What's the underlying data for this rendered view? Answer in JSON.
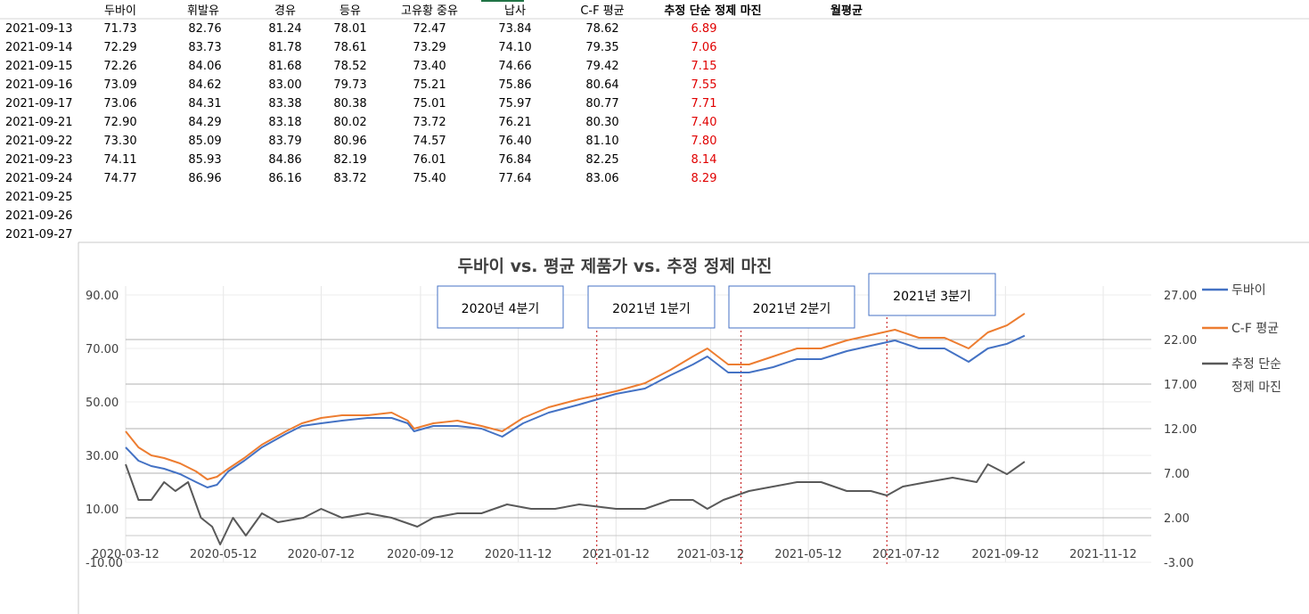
{
  "table": {
    "headers": [
      "두바이",
      "휘발유",
      "경유",
      "등유",
      "고유황 중유",
      "납사",
      "C-F 평균",
      "추정 단순 정제 마진",
      "월평균"
    ],
    "rows": [
      {
        "date": "2021-09-13",
        "values": [
          "71.73",
          "82.76",
          "81.24",
          "78.01",
          "72.47",
          "73.84",
          "78.62",
          "6.89"
        ]
      },
      {
        "date": "2021-09-14",
        "values": [
          "72.29",
          "83.73",
          "81.78",
          "78.61",
          "73.29",
          "74.10",
          "79.35",
          "7.06"
        ]
      },
      {
        "date": "2021-09-15",
        "values": [
          "72.26",
          "84.06",
          "81.68",
          "78.52",
          "73.40",
          "74.66",
          "79.42",
          "7.15"
        ]
      },
      {
        "date": "2021-09-16",
        "values": [
          "73.09",
          "84.62",
          "83.00",
          "79.73",
          "75.21",
          "75.86",
          "80.64",
          "7.55"
        ]
      },
      {
        "date": "2021-09-17",
        "values": [
          "73.06",
          "84.31",
          "83.38",
          "80.38",
          "75.01",
          "75.97",
          "80.77",
          "7.71"
        ]
      },
      {
        "date": "2021-09-21",
        "values": [
          "72.90",
          "84.29",
          "83.18",
          "80.02",
          "73.72",
          "76.21",
          "80.30",
          "7.40"
        ]
      },
      {
        "date": "2021-09-22",
        "values": [
          "73.30",
          "85.09",
          "83.79",
          "80.96",
          "74.57",
          "76.40",
          "81.10",
          "7.80"
        ]
      },
      {
        "date": "2021-09-23",
        "values": [
          "74.11",
          "85.93",
          "84.86",
          "82.19",
          "76.01",
          "76.84",
          "82.25",
          "8.14"
        ]
      },
      {
        "date": "2021-09-24",
        "values": [
          "74.77",
          "86.96",
          "86.16",
          "83.72",
          "75.40",
          "77.64",
          "83.06",
          "8.29"
        ]
      },
      {
        "date": "2021-09-25",
        "values": []
      },
      {
        "date": "2021-09-26",
        "values": []
      },
      {
        "date": "2021-09-27",
        "values": []
      }
    ],
    "margin_color": "#e00000"
  },
  "chart_data": {
    "type": "line",
    "title": "두바이 vs. 평균 제품가 vs. 추정 정제 마진",
    "x_ticks": [
      "2020-03-12",
      "2020-05-12",
      "2020-07-12",
      "2020-09-12",
      "2020-11-12",
      "2021-01-12",
      "2021-03-12",
      "2021-05-12",
      "2021-07-12",
      "2021-09-12",
      "2021-11-12"
    ],
    "x_range": [
      "2020-03-12",
      "2021-12-12"
    ],
    "y_left_ticks": [
      "90.00",
      "70.00",
      "50.00",
      "30.00",
      "10.00",
      "-10.00"
    ],
    "y_left_range": [
      -10,
      90
    ],
    "y_right_ticks": [
      "27.00",
      "22.00",
      "17.00",
      "12.00",
      "7.00",
      "2.00",
      "-3.00"
    ],
    "y_right_range": [
      -3,
      27
    ],
    "gridlines": true,
    "legend_position": "right",
    "quarter_boxes": [
      {
        "label": "2020년 4분기",
        "divider": "2020-12-31"
      },
      {
        "label": "2021년 1분기",
        "divider": "2021-03-31"
      },
      {
        "label": "2021년 2분기",
        "divider": "2021-06-30"
      },
      {
        "label": "2021년 3분기",
        "divider": null
      }
    ],
    "series": [
      {
        "name": "두바이",
        "axis": "left",
        "color": "#4472c4",
        "points": [
          [
            "2020-03-12",
            33
          ],
          [
            "2020-03-20",
            28
          ],
          [
            "2020-03-28",
            26
          ],
          [
            "2020-04-05",
            25
          ],
          [
            "2020-04-15",
            23
          ],
          [
            "2020-04-25",
            20
          ],
          [
            "2020-05-02",
            18
          ],
          [
            "2020-05-08",
            19
          ],
          [
            "2020-05-15",
            24
          ],
          [
            "2020-05-25",
            28
          ],
          [
            "2020-06-05",
            33
          ],
          [
            "2020-06-20",
            38
          ],
          [
            "2020-06-30",
            41
          ],
          [
            "2020-07-12",
            42
          ],
          [
            "2020-07-25",
            43
          ],
          [
            "2020-08-10",
            44
          ],
          [
            "2020-08-25",
            44
          ],
          [
            "2020-09-04",
            42
          ],
          [
            "2020-09-08",
            39
          ],
          [
            "2020-09-20",
            41
          ],
          [
            "2020-10-05",
            41
          ],
          [
            "2020-10-20",
            40
          ],
          [
            "2020-11-02",
            37
          ],
          [
            "2020-11-15",
            42
          ],
          [
            "2020-12-01",
            46
          ],
          [
            "2020-12-20",
            49
          ],
          [
            "2021-01-12",
            53
          ],
          [
            "2021-01-30",
            55
          ],
          [
            "2021-02-15",
            60
          ],
          [
            "2021-03-01",
            64
          ],
          [
            "2021-03-10",
            67
          ],
          [
            "2021-03-23",
            61
          ],
          [
            "2021-04-05",
            61
          ],
          [
            "2021-04-20",
            63
          ],
          [
            "2021-05-05",
            66
          ],
          [
            "2021-05-20",
            66
          ],
          [
            "2021-06-05",
            69
          ],
          [
            "2021-06-20",
            71
          ],
          [
            "2021-07-05",
            73
          ],
          [
            "2021-07-20",
            70
          ],
          [
            "2021-08-05",
            70
          ],
          [
            "2021-08-20",
            65
          ],
          [
            "2021-09-01",
            70
          ],
          [
            "2021-09-13",
            71.73
          ],
          [
            "2021-09-24",
            74.77
          ]
        ]
      },
      {
        "name": "C-F 평균",
        "axis": "left",
        "color": "#ed7d31",
        "points": [
          [
            "2020-03-12",
            39
          ],
          [
            "2020-03-20",
            33
          ],
          [
            "2020-03-28",
            30
          ],
          [
            "2020-04-05",
            29
          ],
          [
            "2020-04-15",
            27
          ],
          [
            "2020-04-25",
            24
          ],
          [
            "2020-05-02",
            21
          ],
          [
            "2020-05-08",
            22
          ],
          [
            "2020-05-15",
            25
          ],
          [
            "2020-05-25",
            29
          ],
          [
            "2020-06-05",
            34
          ],
          [
            "2020-06-20",
            39
          ],
          [
            "2020-06-30",
            42
          ],
          [
            "2020-07-12",
            44
          ],
          [
            "2020-07-25",
            45
          ],
          [
            "2020-08-10",
            45
          ],
          [
            "2020-08-25",
            46
          ],
          [
            "2020-09-04",
            43
          ],
          [
            "2020-09-08",
            40
          ],
          [
            "2020-09-20",
            42
          ],
          [
            "2020-10-05",
            43
          ],
          [
            "2020-10-20",
            41
          ],
          [
            "2020-11-02",
            39
          ],
          [
            "2020-11-15",
            44
          ],
          [
            "2020-12-01",
            48
          ],
          [
            "2020-12-20",
            51
          ],
          [
            "2021-01-12",
            54
          ],
          [
            "2021-01-30",
            57
          ],
          [
            "2021-02-15",
            62
          ],
          [
            "2021-03-01",
            67
          ],
          [
            "2021-03-10",
            70
          ],
          [
            "2021-03-23",
            64
          ],
          [
            "2021-04-05",
            64
          ],
          [
            "2021-04-20",
            67
          ],
          [
            "2021-05-05",
            70
          ],
          [
            "2021-05-20",
            70
          ],
          [
            "2021-06-05",
            73
          ],
          [
            "2021-06-20",
            75
          ],
          [
            "2021-07-05",
            77
          ],
          [
            "2021-07-20",
            74
          ],
          [
            "2021-08-05",
            74
          ],
          [
            "2021-08-20",
            70
          ],
          [
            "2021-09-01",
            76
          ],
          [
            "2021-09-13",
            78.62
          ],
          [
            "2021-09-24",
            83.06
          ]
        ]
      },
      {
        "name": "추정 단순 정제 마진",
        "axis": "right",
        "color": "#595959",
        "points": [
          [
            "2020-03-12",
            8
          ],
          [
            "2020-03-20",
            4
          ],
          [
            "2020-03-28",
            4
          ],
          [
            "2020-04-05",
            6
          ],
          [
            "2020-04-12",
            5
          ],
          [
            "2020-04-20",
            6
          ],
          [
            "2020-04-28",
            2
          ],
          [
            "2020-05-05",
            1
          ],
          [
            "2020-05-10",
            -1
          ],
          [
            "2020-05-18",
            2
          ],
          [
            "2020-05-26",
            0
          ],
          [
            "2020-06-05",
            2.5
          ],
          [
            "2020-06-15",
            1.5
          ],
          [
            "2020-07-01",
            2
          ],
          [
            "2020-07-12",
            3
          ],
          [
            "2020-07-25",
            2
          ],
          [
            "2020-08-10",
            2.5
          ],
          [
            "2020-08-25",
            2
          ],
          [
            "2020-09-10",
            1
          ],
          [
            "2020-09-20",
            2
          ],
          [
            "2020-10-05",
            2.5
          ],
          [
            "2020-10-20",
            2.5
          ],
          [
            "2020-11-05",
            3.5
          ],
          [
            "2020-11-20",
            3
          ],
          [
            "2020-12-05",
            3
          ],
          [
            "2020-12-20",
            3.5
          ],
          [
            "2021-01-12",
            3
          ],
          [
            "2021-01-30",
            3
          ],
          [
            "2021-02-15",
            4
          ],
          [
            "2021-03-01",
            4
          ],
          [
            "2021-03-10",
            3
          ],
          [
            "2021-03-20",
            4
          ],
          [
            "2021-04-05",
            5
          ],
          [
            "2021-04-20",
            5.5
          ],
          [
            "2021-05-05",
            6
          ],
          [
            "2021-05-20",
            6
          ],
          [
            "2021-06-05",
            5
          ],
          [
            "2021-06-20",
            5
          ],
          [
            "2021-06-30",
            4.5
          ],
          [
            "2021-07-10",
            5.5
          ],
          [
            "2021-07-25",
            6
          ],
          [
            "2021-08-10",
            6.5
          ],
          [
            "2021-08-25",
            6
          ],
          [
            "2021-09-01",
            8
          ],
          [
            "2021-09-13",
            6.89
          ],
          [
            "2021-09-24",
            8.29
          ]
        ]
      }
    ]
  }
}
